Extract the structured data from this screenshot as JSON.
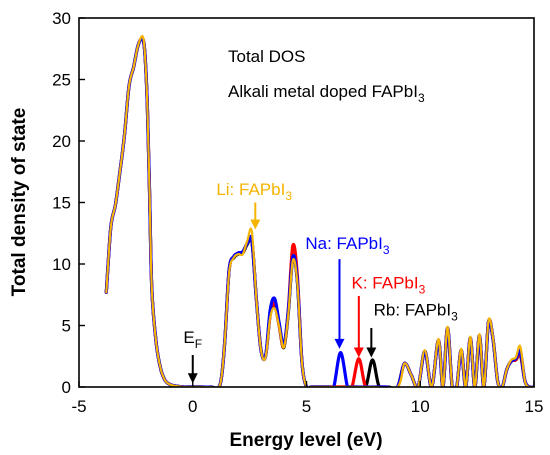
{
  "chart_data": {
    "type": "line",
    "xlabel": "Energy level (eV)",
    "ylabel": "Total density of state",
    "xlim": [
      -5,
      15
    ],
    "ylim": [
      0,
      30
    ],
    "xticks": [
      -5,
      0,
      5,
      10,
      15
    ],
    "yticks": [
      0,
      5,
      10,
      15,
      20,
      25,
      30
    ],
    "grid": false,
    "annotation_lines": [
      "Total DOS",
      "Alkali metal doped FAPbI",
      "3"
    ],
    "fermi_label": {
      "main": "E",
      "sub": "F",
      "x": 0,
      "y_from": 2.6,
      "y_to": 0.3
    },
    "series": [
      {
        "name": "Rb: FAPbI3",
        "label": "Rb: FAPbI",
        "label_sub": "3",
        "color": "#000000",
        "x": [
          -3.8,
          -3.6,
          -3.4,
          -3.2,
          -3.0,
          -2.8,
          -2.6,
          -2.4,
          -2.2,
          -2.1,
          -2.0,
          -1.9,
          -1.8,
          -1.6,
          -1.4,
          -1.2,
          -1.0,
          -0.8,
          -0.6,
          -0.4,
          -0.2,
          0.0,
          0.4,
          0.8,
          1.2,
          1.4,
          1.6,
          1.8,
          2.0,
          2.2,
          2.4,
          2.6,
          2.8,
          3.0,
          3.2,
          3.4,
          3.6,
          3.8,
          4.0,
          4.2,
          4.4,
          4.6,
          4.8,
          5.0,
          5.2,
          5.6,
          6.0,
          6.3,
          6.6,
          6.9,
          7.2,
          7.6,
          7.9,
          8.2,
          8.6,
          9.0,
          9.3,
          9.6,
          9.9,
          10.2,
          10.5,
          10.8,
          11.0,
          11.2,
          11.4,
          11.6,
          11.8,
          12.0,
          12.2,
          12.4,
          12.6,
          12.8,
          13.0,
          13.2,
          13.4,
          13.6,
          13.8,
          14.0,
          14.2,
          14.4,
          14.6,
          14.8,
          15.0
        ],
        "values": [
          7.7,
          13.0,
          14.8,
          17.5,
          20.5,
          24.5,
          26.0,
          27.8,
          28.3,
          27.0,
          23.0,
          16.0,
          8.0,
          3.5,
          1.4,
          0.5,
          0.2,
          0.1,
          0.05,
          0.0,
          0.0,
          0.0,
          0.0,
          0.0,
          0.2,
          3.5,
          9.5,
          10.5,
          10.8,
          10.9,
          11.6,
          11.8,
          7.0,
          3.0,
          2.5,
          5.8,
          6.6,
          5.0,
          3.2,
          6.0,
          10.5,
          8.5,
          2.0,
          0.0,
          0.0,
          0.0,
          0.0,
          0.0,
          0.0,
          0.0,
          0.0,
          0.0,
          2.2,
          0.0,
          0.0,
          0.0,
          1.9,
          1.0,
          0.0,
          2.9,
          0.0,
          3.8,
          0.0,
          4.8,
          0.1,
          0.0,
          3.0,
          0.0,
          4.0,
          0.0,
          4.2,
          0.0,
          5.3,
          3.9,
          0.5,
          0.0,
          1.4,
          2.1,
          2.2,
          2.6,
          0.5,
          0.0,
          0.0
        ]
      },
      {
        "name": "K: FAPbI3",
        "label": "K: FAPbI",
        "label_sub": "3",
        "color": "#ff0000",
        "x": [
          -3.8,
          -3.6,
          -3.4,
          -3.2,
          -3.0,
          -2.8,
          -2.6,
          -2.4,
          -2.2,
          -2.1,
          -2.0,
          -1.9,
          -1.8,
          -1.6,
          -1.4,
          -1.2,
          -1.0,
          -0.8,
          -0.6,
          -0.4,
          -0.2,
          0.0,
          0.4,
          0.8,
          1.2,
          1.4,
          1.6,
          1.8,
          2.0,
          2.2,
          2.4,
          2.6,
          2.8,
          3.0,
          3.2,
          3.4,
          3.6,
          3.8,
          4.0,
          4.2,
          4.4,
          4.6,
          4.8,
          5.0,
          5.2,
          5.6,
          6.0,
          6.4,
          6.8,
          7.0,
          7.3,
          7.6,
          8.0,
          8.5,
          9.0,
          9.3,
          9.6,
          9.9,
          10.2,
          10.5,
          10.8,
          11.0,
          11.2,
          11.4,
          11.6,
          11.8,
          12.0,
          12.2,
          12.4,
          12.6,
          12.8,
          13.0,
          13.2,
          13.4,
          13.6,
          13.8,
          14.0,
          14.2,
          14.4,
          14.6,
          14.8,
          15.0
        ],
        "values": [
          7.7,
          13.0,
          14.8,
          17.5,
          20.5,
          24.5,
          26.0,
          27.8,
          28.3,
          27.0,
          23.0,
          16.0,
          8.0,
          3.5,
          1.4,
          0.5,
          0.2,
          0.1,
          0.05,
          0.0,
          0.0,
          0.0,
          0.0,
          0.0,
          0.2,
          3.5,
          9.5,
          10.6,
          10.9,
          11.0,
          11.7,
          11.9,
          7.0,
          3.0,
          2.5,
          5.9,
          6.8,
          5.0,
          3.3,
          6.3,
          11.5,
          9.0,
          2.0,
          0.0,
          0.0,
          0.0,
          0.0,
          0.0,
          0.0,
          0.0,
          2.3,
          0.0,
          0.0,
          0.0,
          0.0,
          1.9,
          1.0,
          0.0,
          2.9,
          0.0,
          3.8,
          0.0,
          4.8,
          0.1,
          0.0,
          3.0,
          0.0,
          4.0,
          0.0,
          4.2,
          0.0,
          5.3,
          3.9,
          0.5,
          0.0,
          1.4,
          2.1,
          2.2,
          2.7,
          0.5,
          0.0,
          0.0
        ]
      },
      {
        "name": "Na: FAPbI3",
        "label": "Na: FAPbI",
        "label_sub": "3",
        "color": "#0000ff",
        "x": [
          -3.8,
          -3.6,
          -3.4,
          -3.2,
          -3.0,
          -2.8,
          -2.6,
          -2.4,
          -2.2,
          -2.1,
          -2.0,
          -1.9,
          -1.8,
          -1.6,
          -1.4,
          -1.2,
          -1.0,
          -0.8,
          -0.6,
          -0.4,
          -0.2,
          0.0,
          0.4,
          0.8,
          1.2,
          1.4,
          1.6,
          1.8,
          2.0,
          2.2,
          2.4,
          2.6,
          2.8,
          3.0,
          3.2,
          3.4,
          3.6,
          3.8,
          4.0,
          4.2,
          4.4,
          4.6,
          4.8,
          5.0,
          5.2,
          5.6,
          6.0,
          6.2,
          6.5,
          6.8,
          7.0,
          7.5,
          8.0,
          8.5,
          9.0,
          9.3,
          9.6,
          9.9,
          10.2,
          10.5,
          10.8,
          11.0,
          11.2,
          11.4,
          11.6,
          11.8,
          12.0,
          12.2,
          12.4,
          12.6,
          12.8,
          13.0,
          13.2,
          13.4,
          13.6,
          13.8,
          14.0,
          14.2,
          14.4,
          14.6,
          14.8,
          15.0
        ],
        "values": [
          7.7,
          13.0,
          14.8,
          17.5,
          20.5,
          24.5,
          26.0,
          27.8,
          28.3,
          27.0,
          23.0,
          16.0,
          8.0,
          3.5,
          1.4,
          0.5,
          0.2,
          0.1,
          0.05,
          0.0,
          0.0,
          0.0,
          0.0,
          0.0,
          0.2,
          3.5,
          9.5,
          10.6,
          10.9,
          11.0,
          11.7,
          11.9,
          7.0,
          3.0,
          2.5,
          6.2,
          7.2,
          5.2,
          3.4,
          6.2,
          10.6,
          8.6,
          2.0,
          0.0,
          0.0,
          0.0,
          0.0,
          0.0,
          2.8,
          0.0,
          0.0,
          0.0,
          0.0,
          0.0,
          0.0,
          1.9,
          1.0,
          0.0,
          2.9,
          0.0,
          3.8,
          0.0,
          4.8,
          0.1,
          0.0,
          3.0,
          0.0,
          4.0,
          0.0,
          4.2,
          0.0,
          5.3,
          3.9,
          0.5,
          0.0,
          1.4,
          2.1,
          2.3,
          2.9,
          0.5,
          0.0,
          0.0
        ]
      },
      {
        "name": "Li: FAPbI3",
        "label": "Li: FAPbI",
        "label_sub": "3",
        "color": "#f5b400",
        "x": [
          -3.8,
          -3.6,
          -3.4,
          -3.2,
          -3.0,
          -2.8,
          -2.6,
          -2.4,
          -2.2,
          -2.1,
          -2.0,
          -1.9,
          -1.8,
          -1.6,
          -1.4,
          -1.2,
          -1.0,
          -0.8,
          -0.6,
          -0.4,
          -0.2,
          0.0,
          0.4,
          0.8,
          1.2,
          1.4,
          1.6,
          1.8,
          2.0,
          2.2,
          2.4,
          2.6,
          2.8,
          3.0,
          3.2,
          3.4,
          3.6,
          3.8,
          4.0,
          4.2,
          4.4,
          4.6,
          4.8,
          5.0,
          5.2,
          5.6,
          6.0,
          7.0,
          8.0,
          9.0,
          9.3,
          9.6,
          9.9,
          10.2,
          10.5,
          10.8,
          11.0,
          11.2,
          11.4,
          11.6,
          11.8,
          12.0,
          12.2,
          12.4,
          12.6,
          12.8,
          13.0,
          13.2,
          13.4,
          13.6,
          13.8,
          14.0,
          14.2,
          14.4,
          14.6,
          14.8,
          15.0
        ],
        "values": [
          7.7,
          13.0,
          14.8,
          17.5,
          20.5,
          24.5,
          26.0,
          27.8,
          28.5,
          27.0,
          23.0,
          16.0,
          8.0,
          3.5,
          1.4,
          0.5,
          0.2,
          0.1,
          0.05,
          0.0,
          0.0,
          0.0,
          0.0,
          0.0,
          0.2,
          3.5,
          9.3,
          10.5,
          10.8,
          10.8,
          11.9,
          12.6,
          7.0,
          3.0,
          2.4,
          5.6,
          6.4,
          4.9,
          3.2,
          5.9,
          10.3,
          8.4,
          2.0,
          0.0,
          0.0,
          0.0,
          0.0,
          0.0,
          0.0,
          0.0,
          1.9,
          1.0,
          0.0,
          3.0,
          0.0,
          3.9,
          0.0,
          4.9,
          0.1,
          0.0,
          3.1,
          0.0,
          4.1,
          0.0,
          4.3,
          0.0,
          5.4,
          4.0,
          0.5,
          0.0,
          1.4,
          2.2,
          2.4,
          3.3,
          0.5,
          0.0,
          0.0
        ]
      }
    ],
    "series_labels": [
      {
        "series": 3,
        "x": 2.7,
        "y": 15.6,
        "arrow_from": 15.0,
        "arrow_to": 12.8
      },
      {
        "series": 2,
        "x": 6.8,
        "y": 11.2,
        "arrow_from": 10.4,
        "arrow_to": 3.1
      },
      {
        "series": 1,
        "x": 8.6,
        "y": 8.0,
        "arrow_from": 7.4,
        "arrow_to": 2.4
      },
      {
        "series": 0,
        "x": 9.8,
        "y": 5.8,
        "arrow_from": 4.8,
        "arrow_to": 2.4
      }
    ],
    "arrow_x": [
      2.75,
      6.45,
      7.3,
      7.85
    ]
  }
}
